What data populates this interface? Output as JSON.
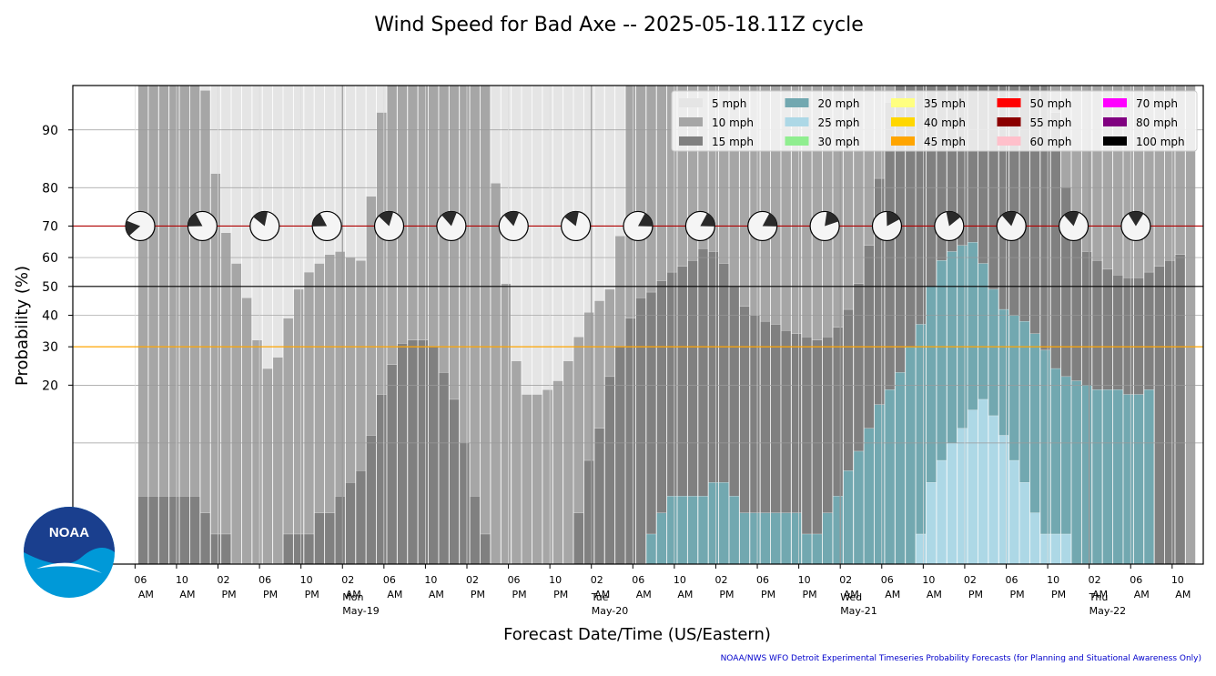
{
  "chart_data": {
    "type": "bar",
    "title": "Wind Speed for Bad Axe -- 2025-05-18.11Z cycle",
    "xlabel": "Forecast Date/Time (US/Eastern)",
    "ylabel": "Probability (%)",
    "yscale": "log (probability axis, ticks 20-90)",
    "yticks": [
      20,
      30,
      40,
      50,
      60,
      70,
      80,
      90
    ],
    "reference_lines": [
      {
        "value": 70,
        "color": "#b00000"
      },
      {
        "value": 50,
        "color": "#000000"
      },
      {
        "value": 30,
        "color": "#ffa500"
      }
    ],
    "grid": true,
    "legend_position": "top-right",
    "legend": [
      {
        "label": "5 mph",
        "color": "#e5e5e5"
      },
      {
        "label": "10 mph",
        "color": "#a6a6a6"
      },
      {
        "label": "15 mph",
        "color": "#808080"
      },
      {
        "label": "20 mph",
        "color": "#72a8b0"
      },
      {
        "label": "25 mph",
        "color": "#add8e6"
      },
      {
        "label": "30 mph",
        "color": "#90ee90"
      },
      {
        "label": "35 mph",
        "color": "#ffff80"
      },
      {
        "label": "40 mph",
        "color": "#ffd700"
      },
      {
        "label": "45 mph",
        "color": "#ffa500"
      },
      {
        "label": "50 mph",
        "color": "#ff0000"
      },
      {
        "label": "55 mph",
        "color": "#8b0000"
      },
      {
        "label": "60 mph",
        "color": "#ffc0cb"
      },
      {
        "label": "70 mph",
        "color": "#ff00ff"
      },
      {
        "label": "80 mph",
        "color": "#800080"
      },
      {
        "label": "100 mph",
        "color": "#000000"
      }
    ],
    "x_start_hour": 6.3,
    "x_step_hours": 1,
    "xticks": [
      {
        "hour": 6,
        "time": "06",
        "ampm": "AM",
        "day": ""
      },
      {
        "hour": 10,
        "time": "10",
        "ampm": "AM",
        "day": ""
      },
      {
        "hour": 14,
        "time": "02",
        "ampm": "PM",
        "day": ""
      },
      {
        "hour": 18,
        "time": "06",
        "ampm": "PM",
        "day": ""
      },
      {
        "hour": 22,
        "time": "10",
        "ampm": "PM",
        "day": ""
      },
      {
        "hour": 26,
        "time": "02",
        "ampm": "AM",
        "day": "Mon\nMay-19"
      },
      {
        "hour": 30,
        "time": "06",
        "ampm": "AM",
        "day": ""
      },
      {
        "hour": 34,
        "time": "10",
        "ampm": "AM",
        "day": ""
      },
      {
        "hour": 38,
        "time": "02",
        "ampm": "PM",
        "day": ""
      },
      {
        "hour": 42,
        "time": "06",
        "ampm": "PM",
        "day": ""
      },
      {
        "hour": 46,
        "time": "10",
        "ampm": "PM",
        "day": ""
      },
      {
        "hour": 50,
        "time": "02",
        "ampm": "AM",
        "day": "Tue\nMay-20"
      },
      {
        "hour": 54,
        "time": "06",
        "ampm": "AM",
        "day": ""
      },
      {
        "hour": 58,
        "time": "10",
        "ampm": "AM",
        "day": ""
      },
      {
        "hour": 62,
        "time": "02",
        "ampm": "PM",
        "day": ""
      },
      {
        "hour": 66,
        "time": "06",
        "ampm": "PM",
        "day": ""
      },
      {
        "hour": 70,
        "time": "10",
        "ampm": "PM",
        "day": ""
      },
      {
        "hour": 74,
        "time": "02",
        "ampm": "AM",
        "day": "Wed\nMay-21"
      },
      {
        "hour": 78,
        "time": "06",
        "ampm": "AM",
        "day": ""
      },
      {
        "hour": 82,
        "time": "10",
        "ampm": "AM",
        "day": ""
      },
      {
        "hour": 86,
        "time": "02",
        "ampm": "PM",
        "day": ""
      },
      {
        "hour": 90,
        "time": "06",
        "ampm": "PM",
        "day": ""
      },
      {
        "hour": 94,
        "time": "10",
        "ampm": "PM",
        "day": ""
      },
      {
        "hour": 98,
        "time": "02",
        "ampm": "AM",
        "day": "Thu\nMay-22"
      },
      {
        "hour": 102,
        "time": "06",
        "ampm": "AM",
        "day": ""
      },
      {
        "hour": 106,
        "time": "10",
        "ampm": "AM",
        "day": ""
      }
    ],
    "series": [
      {
        "name": "5 mph",
        "color": "#e5e5e5",
        "values": [
          100,
          100,
          100,
          100,
          100,
          100,
          100,
          100,
          100,
          100,
          100,
          100,
          100,
          100,
          100,
          100,
          100,
          100,
          100,
          100,
          100,
          100,
          100,
          100,
          100,
          100,
          100,
          100,
          100,
          100,
          100,
          100,
          100,
          100,
          100,
          100,
          100,
          100,
          100,
          100,
          100,
          100,
          100,
          100,
          100,
          100,
          100,
          100,
          100,
          100,
          100,
          100,
          100,
          100,
          100,
          100,
          100,
          100,
          100,
          100,
          100,
          100,
          100,
          100,
          100,
          100,
          100,
          100,
          100,
          100,
          100,
          100,
          100,
          100,
          100,
          100,
          100,
          100,
          100,
          100,
          100,
          100,
          100,
          100,
          100,
          100,
          100,
          100,
          100,
          100,
          100,
          100,
          100,
          100,
          100,
          100,
          100,
          100,
          100,
          100,
          100,
          100
        ]
      },
      {
        "name": "10 mph",
        "color": "#a6a6a6",
        "values": [
          99,
          99,
          99,
          99,
          99,
          99,
          94,
          83,
          68,
          58,
          46,
          32,
          24,
          27,
          39,
          49,
          55,
          58,
          61,
          62,
          60,
          59,
          78,
          92,
          99,
          99,
          99,
          99,
          99,
          99,
          99,
          99,
          99,
          99,
          81,
          51,
          26,
          18,
          18,
          19,
          21,
          26,
          33,
          41,
          45,
          49,
          67,
          99,
          99,
          99,
          99,
          99,
          99,
          99,
          99,
          99,
          99,
          99,
          99,
          99,
          99,
          99,
          99,
          99,
          99,
          99,
          99,
          99,
          99,
          99,
          99,
          99,
          99,
          99,
          99,
          99,
          99,
          99,
          99,
          99,
          99,
          99,
          99,
          99,
          99,
          99,
          99,
          99,
          99,
          99,
          99,
          99,
          99,
          99,
          99,
          99,
          99,
          99,
          99,
          99,
          99,
          99
        ]
      },
      {
        "name": "15 mph",
        "color": "#808080",
        "values": [
          5,
          5,
          5,
          5,
          5,
          5,
          4,
          3,
          3,
          2,
          2,
          2,
          2,
          2,
          3,
          3,
          3,
          4,
          4,
          5,
          6,
          7,
          11,
          18,
          25,
          31,
          32,
          32,
          30,
          23,
          17,
          10,
          5,
          3,
          2,
          2,
          1,
          1,
          1,
          1,
          1,
          2,
          4,
          8,
          12,
          22,
          30,
          39,
          46,
          48,
          52,
          55,
          57,
          59,
          63,
          62,
          58,
          50,
          43,
          40,
          38,
          37,
          35,
          34,
          33,
          32,
          33,
          36,
          42,
          51,
          64,
          82,
          93,
          98,
          99,
          99,
          99,
          99,
          99,
          99,
          99,
          99,
          99,
          99,
          99,
          99,
          99,
          98,
          92,
          80,
          70,
          62,
          59,
          56,
          54,
          53,
          53,
          55,
          57,
          59,
          61
        ]
      },
      {
        "name": "20 mph",
        "color": "#72a8b0",
        "values": [
          0,
          0,
          0,
          0,
          0,
          0,
          0,
          0,
          0,
          0,
          0,
          0,
          0,
          0,
          0,
          0,
          0,
          0,
          0,
          0,
          0,
          0,
          0,
          0,
          0,
          0,
          0,
          0,
          0,
          0,
          0,
          0,
          0,
          0,
          0,
          0,
          0,
          0,
          0,
          0,
          0,
          0,
          0,
          0,
          0,
          0,
          0,
          1,
          2,
          3,
          4,
          5,
          5,
          5,
          5,
          6,
          6,
          5,
          4,
          4,
          4,
          4,
          4,
          4,
          3,
          3,
          4,
          5,
          7,
          9,
          12,
          16,
          19,
          23,
          30,
          37,
          50,
          59,
          62,
          64,
          65,
          58,
          49,
          42,
          40,
          38,
          34,
          29,
          24,
          22,
          21,
          20,
          19,
          19,
          19,
          18,
          18,
          19
        ]
      },
      {
        "name": "25 mph",
        "color": "#add8e6",
        "values": [
          0,
          0,
          0,
          0,
          0,
          0,
          0,
          0,
          0,
          0,
          0,
          0,
          0,
          0,
          0,
          0,
          0,
          0,
          0,
          0,
          0,
          0,
          0,
          0,
          0,
          0,
          0,
          0,
          0,
          0,
          0,
          0,
          0,
          0,
          0,
          0,
          0,
          0,
          0,
          0,
          0,
          0,
          0,
          0,
          0,
          0,
          0,
          0,
          0,
          0,
          0,
          0,
          0,
          0,
          0,
          0,
          0,
          0,
          0,
          0,
          0,
          0,
          0,
          0,
          0,
          0,
          0,
          0,
          0,
          0,
          0,
          0,
          0,
          1,
          2,
          3,
          6,
          8,
          10,
          12,
          15,
          17,
          14,
          11,
          8,
          6,
          4,
          3,
          3,
          3,
          2,
          2,
          2,
          1,
          1,
          1,
          1,
          1,
          1,
          1,
          1,
          1
        ]
      }
    ],
    "wind_directions": [
      {
        "hour": 6,
        "deg": 260
      },
      {
        "hour": 12,
        "deg": 300
      },
      {
        "hour": 18,
        "deg": 340
      },
      {
        "hour": 24,
        "deg": 300
      },
      {
        "hour": 30,
        "deg": 345
      },
      {
        "hour": 36,
        "deg": 350
      },
      {
        "hour": 42,
        "deg": 350
      },
      {
        "hour": 48,
        "deg": 340
      },
      {
        "hour": 54,
        "deg": 60
      },
      {
        "hour": 60,
        "deg": 60
      },
      {
        "hour": 66,
        "deg": 60
      },
      {
        "hour": 72,
        "deg": 40
      },
      {
        "hour": 78,
        "deg": 30
      },
      {
        "hour": 84,
        "deg": 20
      },
      {
        "hour": 90,
        "deg": 350
      },
      {
        "hour": 96,
        "deg": 350
      },
      {
        "hour": 102,
        "deg": 0
      }
    ],
    "credit": "NOAA/NWS WFO Detroit Experimental Timeseries Probability Forecasts (for Planning and Situational Awareness Only)",
    "logo_text": "NOAA"
  }
}
